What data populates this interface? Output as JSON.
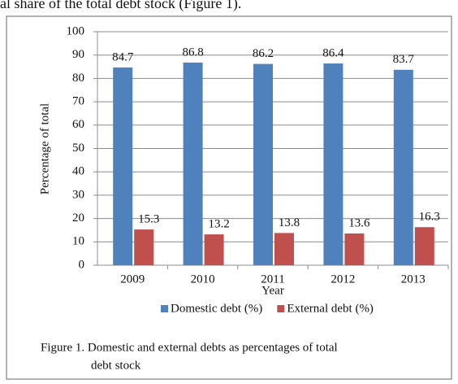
{
  "context_text": "al share of the total debt stock (Figure 1).",
  "chart_data": {
    "type": "bar",
    "x_label": "Year",
    "y_label": "Percentage of total",
    "categories": [
      "2009",
      "2010",
      "2011",
      "2012",
      "2013"
    ],
    "series": [
      {
        "name": "Domestic debt (%)",
        "color": "#4f81bd",
        "values": [
          84.7,
          86.8,
          86.2,
          86.4,
          83.7
        ]
      },
      {
        "name": "External debt (%)",
        "color": "#c0504d",
        "values": [
          15.3,
          13.2,
          13.8,
          13.6,
          16.3
        ]
      }
    ],
    "ylim": [
      0,
      100
    ],
    "yticks": [
      0,
      10,
      20,
      30,
      40,
      50,
      60,
      70,
      80,
      90,
      100
    ],
    "grid": true,
    "legend": "bottom"
  },
  "caption": [
    "Figure 1. Domestic and external debts as percentages of total",
    "debt stock"
  ]
}
